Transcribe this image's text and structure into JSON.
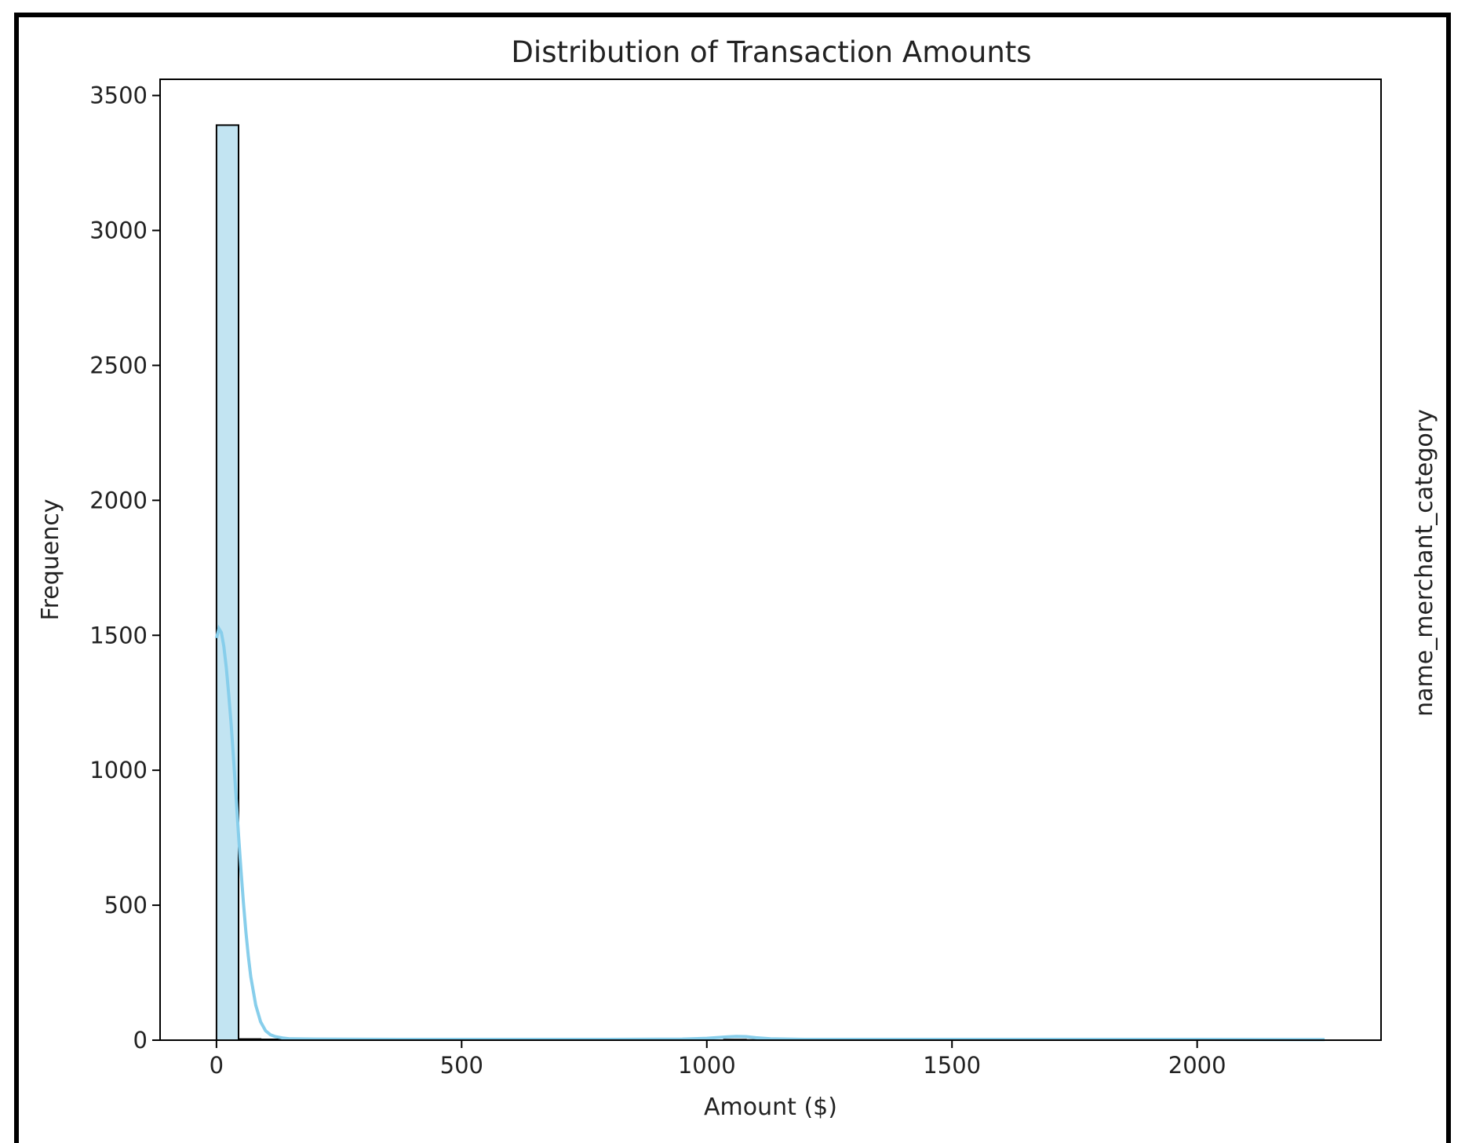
{
  "chart_data": {
    "type": "bar",
    "title": "Distribution of Transaction Amounts",
    "xlabel": "Amount ($)",
    "ylabel": "Frequency",
    "right_label": "name_merchant_category",
    "xlim": [
      -115,
      2375
    ],
    "ylim": [
      0,
      3560
    ],
    "xticks": [
      0,
      500,
      1000,
      1500,
      2000
    ],
    "xtick_labels": [
      "0",
      "500",
      "1000",
      "1500",
      "2000"
    ],
    "yticks": [
      0,
      500,
      1000,
      1500,
      2000,
      2500,
      3000,
      3500
    ],
    "ytick_labels": [
      "0",
      "500",
      "1000",
      "1500",
      "2000",
      "2500",
      "3000",
      "3500"
    ],
    "bin_width": 45,
    "bins": [
      {
        "x0": 0,
        "x1": 45,
        "value": 3390
      },
      {
        "x0": 45,
        "x1": 90,
        "value": 4
      },
      {
        "x0": 90,
        "x1": 135,
        "value": 3
      },
      {
        "x0": 135,
        "x1": 180,
        "value": 1
      },
      {
        "x0": 1035,
        "x1": 1080,
        "value": 2
      },
      {
        "x0": 1080,
        "x1": 1125,
        "value": 1
      }
    ],
    "kde": {
      "x": [
        0,
        5,
        10,
        15,
        20,
        25,
        30,
        35,
        40,
        45,
        50,
        55,
        60,
        65,
        70,
        80,
        90,
        100,
        110,
        120,
        135,
        150,
        200,
        400,
        600,
        800,
        950,
        1000,
        1040,
        1060,
        1080,
        1100,
        1130,
        1200,
        1400,
        1600,
        1800,
        2000,
        2260
      ],
      "y": [
        1490,
        1525,
        1510,
        1460,
        1380,
        1280,
        1170,
        1040,
        900,
        760,
        630,
        510,
        400,
        310,
        235,
        130,
        68,
        35,
        20,
        13,
        8,
        5,
        4,
        3,
        3,
        3,
        4,
        7,
        12,
        14,
        13,
        9,
        5,
        3,
        3,
        3,
        3,
        3,
        2
      ]
    },
    "bar_color": "#c2e4f2",
    "bar_edge_color": "#000000",
    "kde_color": "#87ceeb",
    "grid": false,
    "legend": false
  }
}
